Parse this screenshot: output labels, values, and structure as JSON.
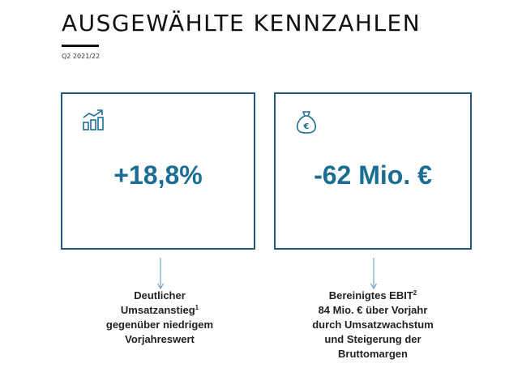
{
  "header": {
    "title": "AUSGEWÄHLTE KENNZAHLEN",
    "subtitle": "Q2 2021/22"
  },
  "cards": [
    {
      "icon": "growth-chart-icon",
      "value": "+18,8%",
      "description_line1": "Deutlicher",
      "description_line2": "Umsatzanstieg",
      "description_line2_sup": "1",
      "description_line3": "gegenüber niedrigem",
      "description_line4": "Vorjahreswert"
    },
    {
      "icon": "money-bag-euro-icon",
      "value": "-62 Mio. €",
      "description_line1": "Bereinigtes EBIT",
      "description_line1_sup": "2",
      "description_line2": "84 Mio. € über Vorjahr",
      "description_line3": "durch Umsatzwachstum",
      "description_line4": "und Steigerung der",
      "description_line5": "Bruttomargen"
    }
  ],
  "colors": {
    "accent": "#1b6d94",
    "border": "#1f5b78",
    "arrow": "#5a8fb5"
  }
}
